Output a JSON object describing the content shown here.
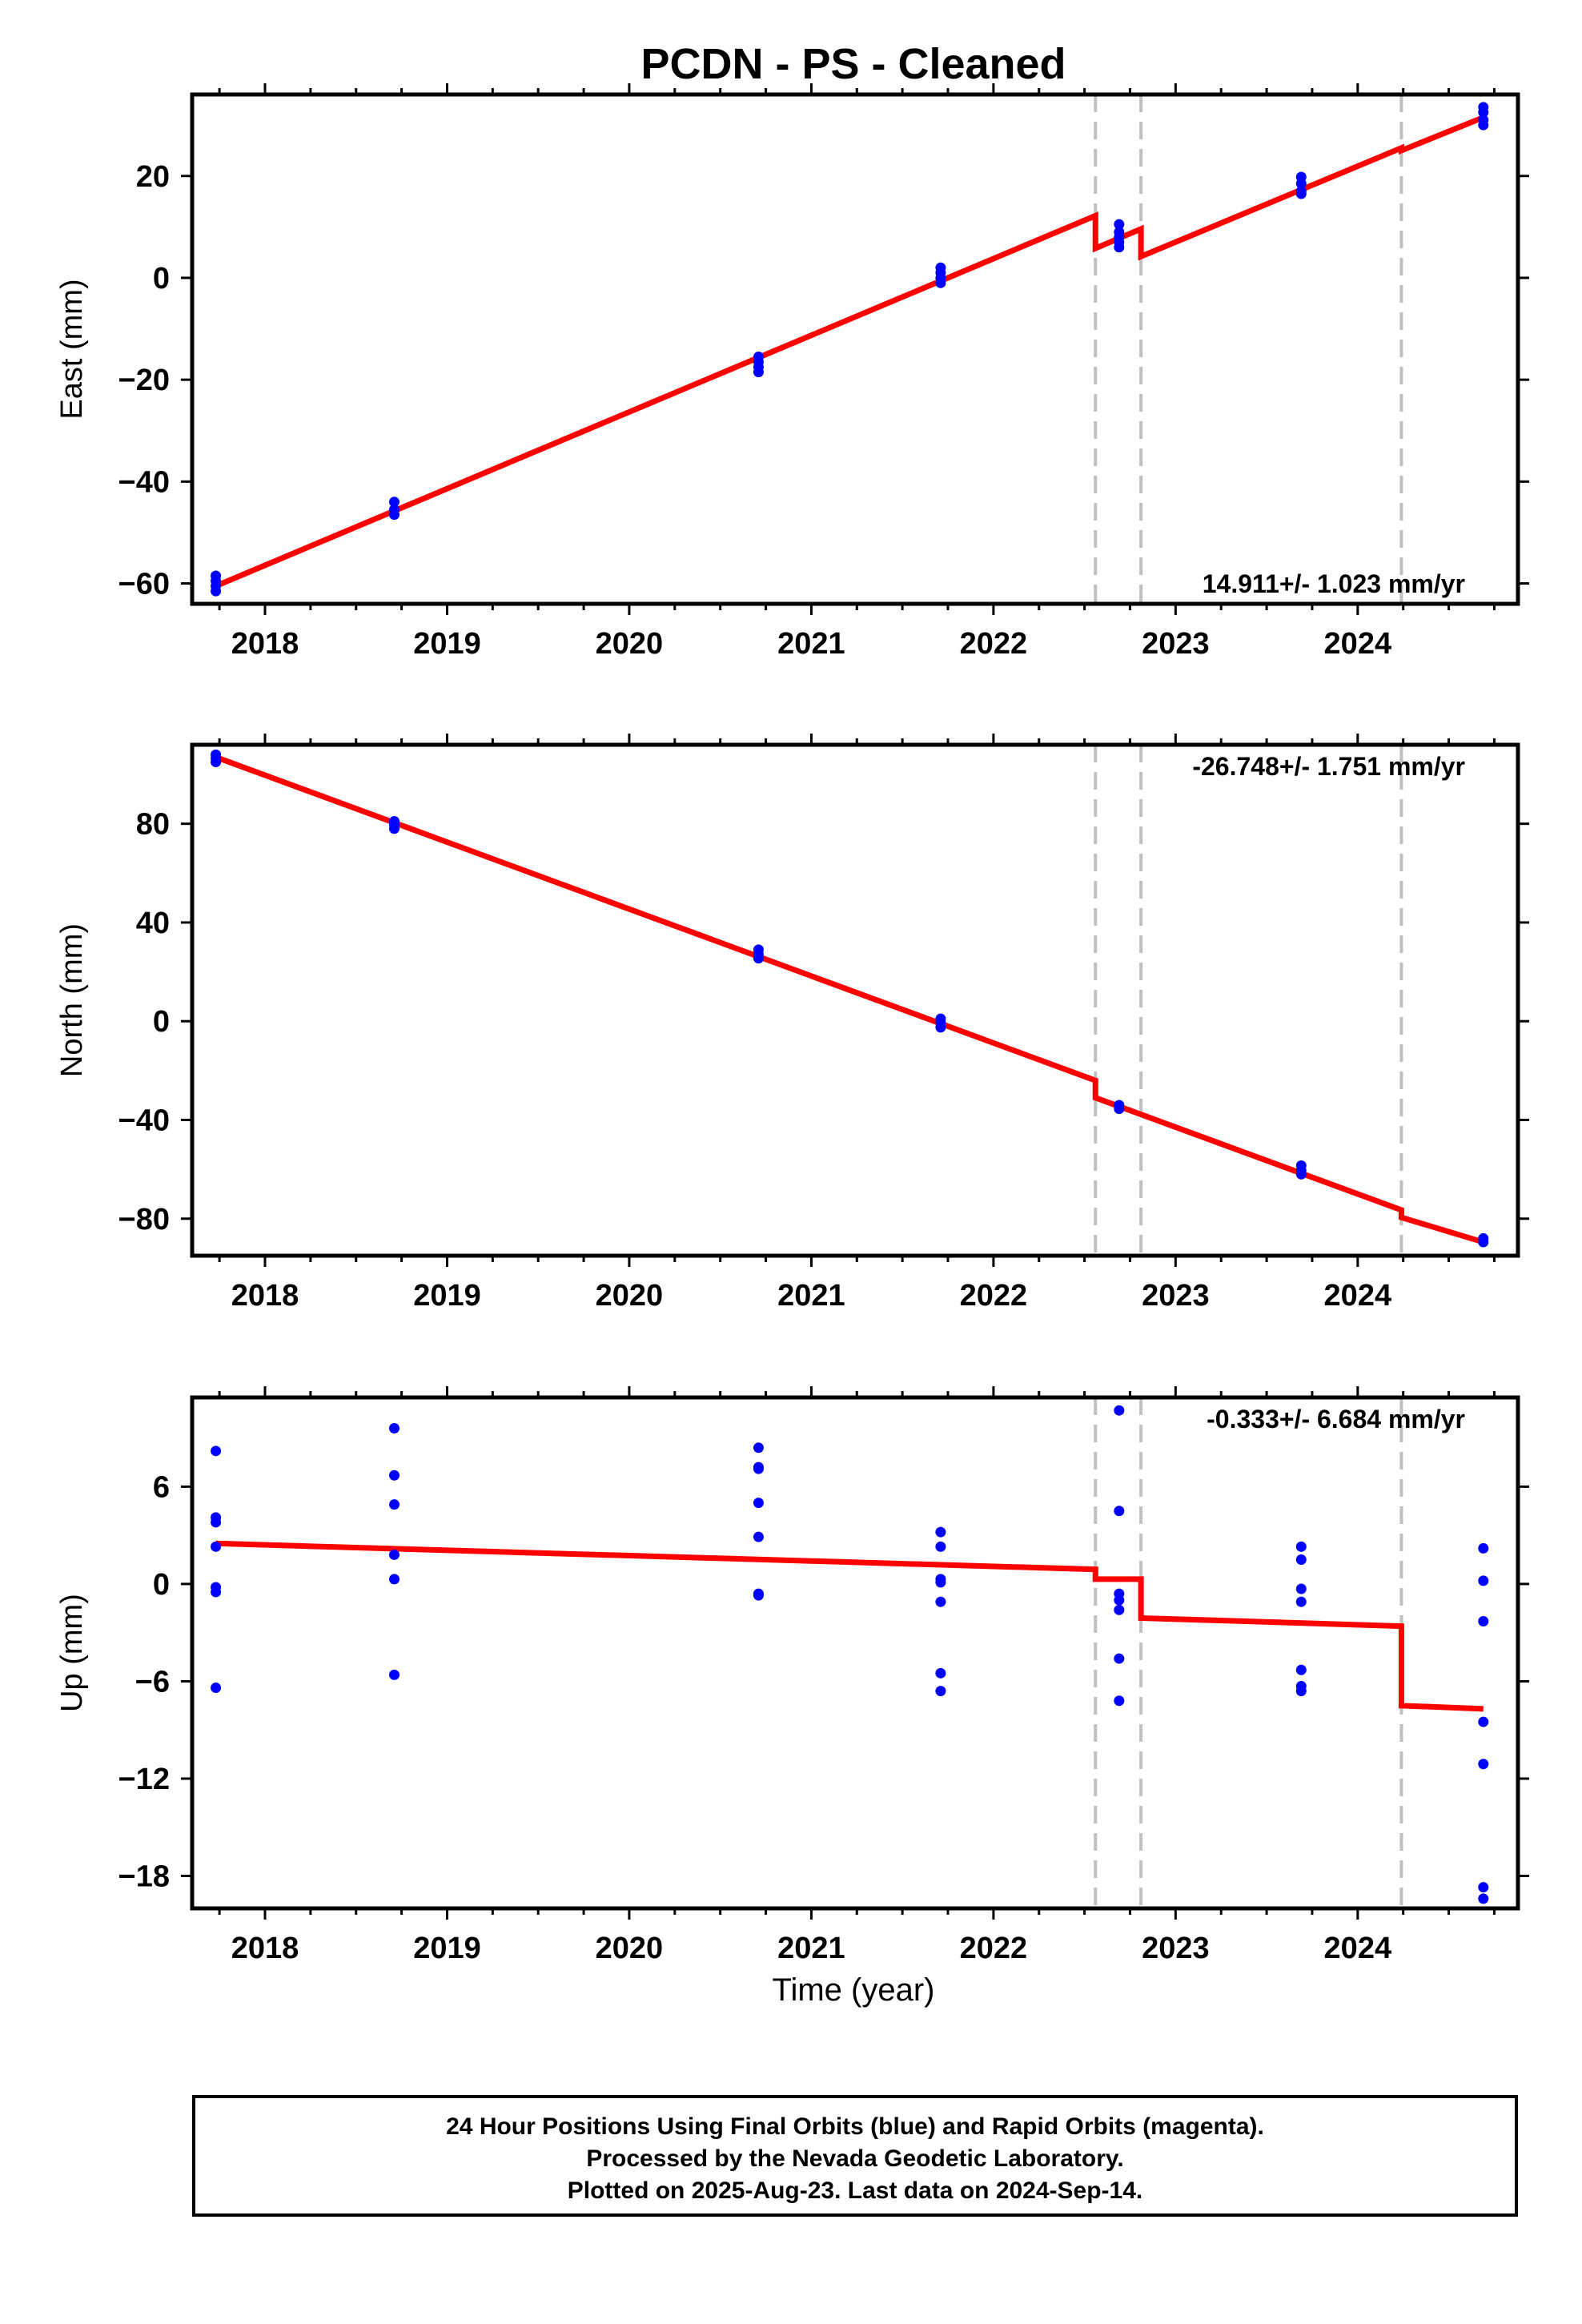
{
  "title": "PCDN  - PS - Cleaned",
  "xlabel": "Time (year)",
  "caption": [
    "24 Hour Positions Using Final Orbits (blue) and Rapid Orbits (magenta).",
    "Processed by the Nevada Geodetic Laboratory.",
    "Plotted on 2025-Aug-23. Last data on 2024-Sep-14."
  ],
  "colors": {
    "fit": "#ff0000",
    "final_points": "#0000ff",
    "rapid_points": "#ff00ff",
    "step_lines": "#c0c0c0"
  },
  "chart_data": [
    {
      "type": "scatter",
      "name": "east",
      "ylabel": "East (mm)",
      "rate_label": "14.911+/- 1.023 mm/yr",
      "rate_position": "bottom-right",
      "xlim": [
        2017.6,
        2024.88
      ],
      "ylim": [
        -64,
        36
      ],
      "xticks": [
        2018,
        2019,
        2020,
        2021,
        2022,
        2023,
        2024
      ],
      "yticks": [
        -60,
        -40,
        -20,
        0,
        20
      ],
      "ytick_labels": [
        "−60",
        "−40",
        "−20",
        "0",
        "20"
      ],
      "steps": [
        2022.56,
        2022.81,
        2024.24
      ],
      "points": [
        [
          2017.73,
          -58.5
        ],
        [
          2017.73,
          -59.5
        ],
        [
          2017.73,
          -60.5
        ],
        [
          2017.73,
          -61.5
        ],
        [
          2018.71,
          -44.0
        ],
        [
          2018.71,
          -45.5
        ],
        [
          2018.71,
          -46.5
        ],
        [
          2020.71,
          -15.5
        ],
        [
          2020.71,
          -16.5
        ],
        [
          2020.71,
          -17.5
        ],
        [
          2020.71,
          -18.5
        ],
        [
          2021.71,
          2.0
        ],
        [
          2021.71,
          1.0
        ],
        [
          2021.71,
          0.0
        ],
        [
          2021.71,
          -1.0
        ],
        [
          2022.69,
          10.5
        ],
        [
          2022.69,
          9.0
        ],
        [
          2022.69,
          8.0
        ],
        [
          2022.69,
          7.0
        ],
        [
          2022.69,
          6.0
        ],
        [
          2023.69,
          19.8
        ],
        [
          2023.69,
          18.5
        ],
        [
          2023.69,
          17.0
        ],
        [
          2023.69,
          16.5
        ],
        [
          2024.69,
          33.5
        ],
        [
          2024.69,
          32.5
        ],
        [
          2024.69,
          31.0
        ],
        [
          2024.69,
          30.0
        ]
      ],
      "fit": [
        [
          2017.73,
          -60.5
        ],
        [
          2022.56,
          12.2
        ],
        [
          2022.56,
          5.8
        ],
        [
          2022.81,
          9.6
        ],
        [
          2022.81,
          4.2
        ],
        [
          2024.24,
          25.5
        ],
        [
          2024.24,
          25.0
        ],
        [
          2024.69,
          31.5
        ]
      ]
    },
    {
      "type": "scatter",
      "name": "north",
      "ylabel": "North (mm)",
      "rate_label": "-26.748+/- 1.751 mm/yr",
      "rate_position": "top-right",
      "xlim": [
        2017.6,
        2024.88
      ],
      "ylim": [
        -95,
        112
      ],
      "xticks": [
        2018,
        2019,
        2020,
        2021,
        2022,
        2023,
        2024
      ],
      "yticks": [
        -80,
        -40,
        0,
        40,
        80
      ],
      "ytick_labels": [
        "−80",
        "−40",
        "0",
        "40",
        "80"
      ],
      "steps": [
        2022.56,
        2022.81,
        2024.24
      ],
      "points": [
        [
          2017.73,
          108.0
        ],
        [
          2017.73,
          106.5
        ],
        [
          2017.73,
          105.0
        ],
        [
          2018.71,
          81.0
        ],
        [
          2018.71,
          79.5
        ],
        [
          2018.71,
          78.0
        ],
        [
          2020.71,
          29.0
        ],
        [
          2020.71,
          27.0
        ],
        [
          2020.71,
          25.5
        ],
        [
          2021.71,
          1.0
        ],
        [
          2021.71,
          -0.5
        ],
        [
          2021.71,
          -2.5
        ],
        [
          2022.69,
          -34.0
        ],
        [
          2022.69,
          -35.5
        ],
        [
          2023.69,
          -58.5
        ],
        [
          2023.69,
          -60.5
        ],
        [
          2023.69,
          -62.0
        ],
        [
          2024.69,
          -88.0
        ],
        [
          2024.69,
          -89.5
        ]
      ],
      "fit": [
        [
          2017.73,
          107.0
        ],
        [
          2022.56,
          -24.0
        ],
        [
          2022.56,
          -31.0
        ],
        [
          2024.24,
          -76.5
        ],
        [
          2024.24,
          -79.5
        ],
        [
          2024.69,
          -89.5
        ]
      ]
    },
    {
      "type": "scatter",
      "name": "up",
      "ylabel": "Up (mm)",
      "rate_label": "-0.333+/- 6.684 mm/yr",
      "rate_position": "top-right",
      "xlim": [
        2017.6,
        2024.88
      ],
      "ylim": [
        -20,
        11.5
      ],
      "xticks": [
        2018,
        2019,
        2020,
        2021,
        2022,
        2023,
        2024
      ],
      "yticks": [
        -18,
        -12,
        -6,
        0,
        6
      ],
      "ytick_labels": [
        "−18",
        "−12",
        "−6",
        "0",
        "6"
      ],
      "steps": [
        2022.56,
        2022.81,
        2024.24
      ],
      "points": [
        [
          2017.73,
          8.2
        ],
        [
          2017.73,
          4.1
        ],
        [
          2017.73,
          3.8
        ],
        [
          2017.73,
          2.3
        ],
        [
          2017.73,
          -0.2
        ],
        [
          2017.73,
          -0.5
        ],
        [
          2017.73,
          -6.4
        ],
        [
          2018.71,
          9.6
        ],
        [
          2018.71,
          6.7
        ],
        [
          2018.71,
          4.9
        ],
        [
          2018.71,
          1.8
        ],
        [
          2018.71,
          0.3
        ],
        [
          2018.71,
          -5.6
        ],
        [
          2020.71,
          8.4
        ],
        [
          2020.71,
          7.2
        ],
        [
          2020.71,
          7.1
        ],
        [
          2020.71,
          5.0
        ],
        [
          2020.71,
          2.9
        ],
        [
          2020.71,
          -0.6
        ],
        [
          2020.71,
          -0.7
        ],
        [
          2021.71,
          3.2
        ],
        [
          2021.71,
          2.3
        ],
        [
          2021.71,
          0.3
        ],
        [
          2021.71,
          0.1
        ],
        [
          2021.71,
          -1.1
        ],
        [
          2021.71,
          -5.5
        ],
        [
          2021.71,
          -6.6
        ],
        [
          2022.69,
          10.7
        ],
        [
          2022.69,
          4.5
        ],
        [
          2022.69,
          -0.6
        ],
        [
          2022.69,
          -1.0
        ],
        [
          2022.69,
          -1.6
        ],
        [
          2022.69,
          -4.6
        ],
        [
          2022.69,
          -7.2
        ],
        [
          2023.69,
          2.3
        ],
        [
          2023.69,
          1.5
        ],
        [
          2023.69,
          -0.3
        ],
        [
          2023.69,
          -1.1
        ],
        [
          2023.69,
          -5.3
        ],
        [
          2023.69,
          -6.3
        ],
        [
          2023.69,
          -6.6
        ],
        [
          2024.69,
          2.2
        ],
        [
          2024.69,
          0.2
        ],
        [
          2024.69,
          -2.3
        ],
        [
          2024.69,
          -8.5
        ],
        [
          2024.69,
          -11.1
        ],
        [
          2024.69,
          -18.7
        ],
        [
          2024.69,
          -19.4
        ]
      ],
      "fit": [
        [
          2017.73,
          2.5
        ],
        [
          2022.56,
          0.9
        ],
        [
          2022.56,
          0.3
        ],
        [
          2022.81,
          0.3
        ],
        [
          2022.81,
          -2.1
        ],
        [
          2024.24,
          -2.6
        ],
        [
          2024.24,
          -7.5
        ],
        [
          2024.69,
          -7.7
        ]
      ]
    }
  ]
}
